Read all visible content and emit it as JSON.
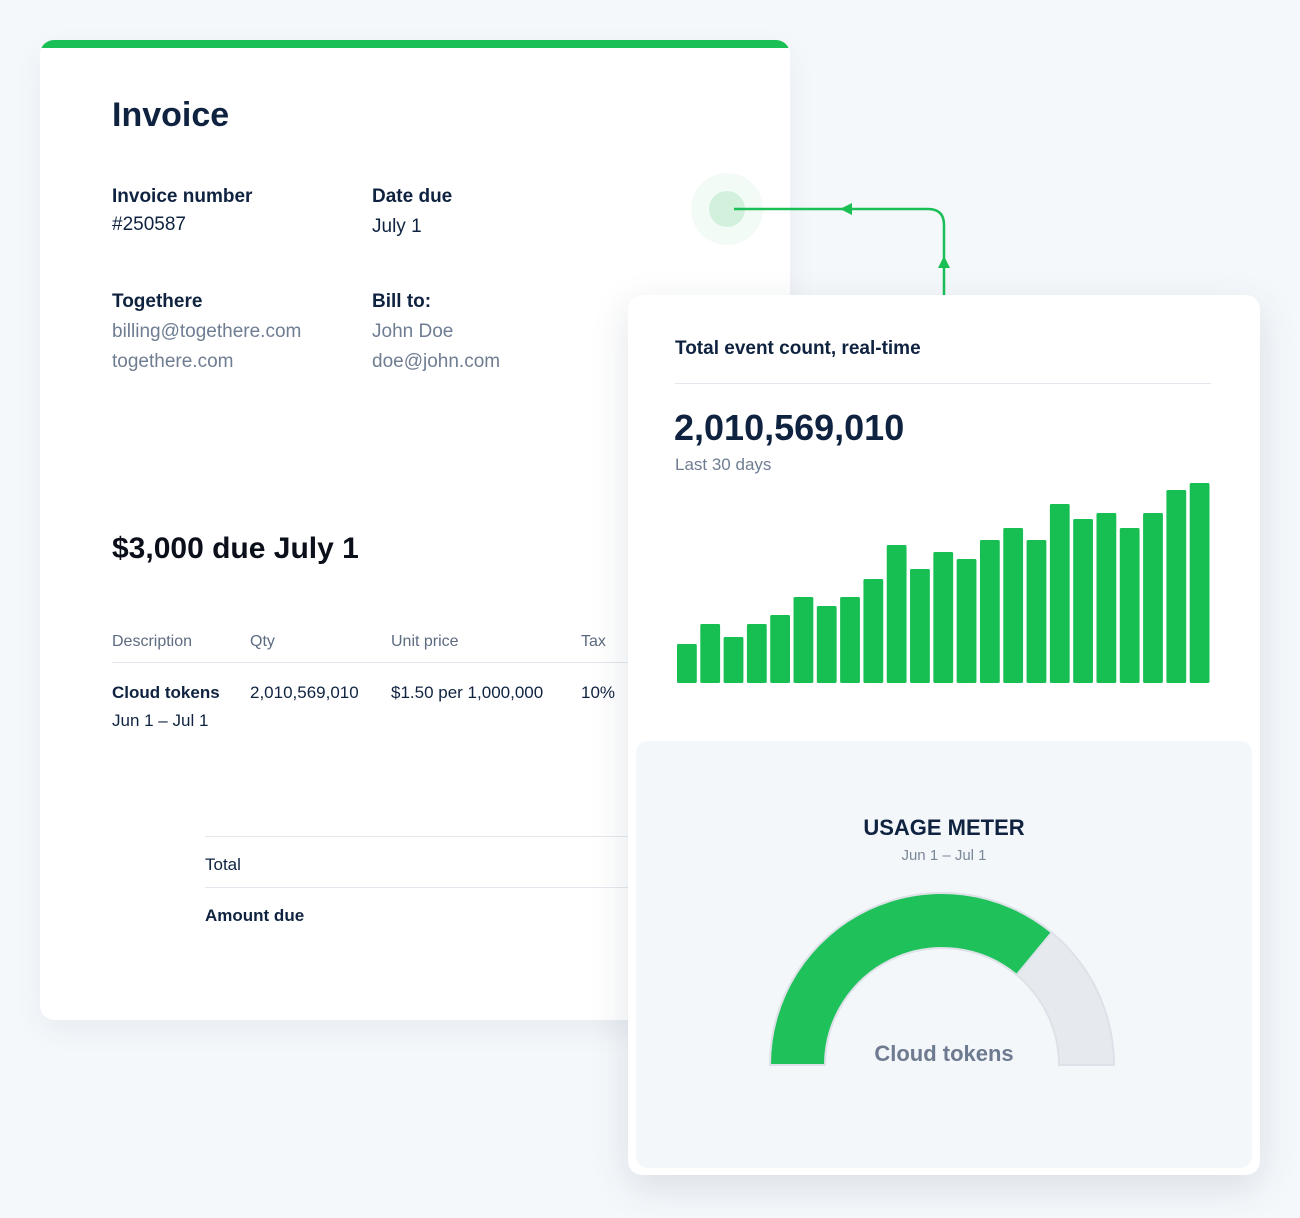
{
  "invoice": {
    "title": "Invoice",
    "invoice_number_label": "Invoice number",
    "invoice_number": "#250587",
    "date_due_label": "Date due",
    "date_due": "July 1",
    "from": {
      "name": "Togethere",
      "email": "billing@togethere.com",
      "site": "togethere.com"
    },
    "bill_to": {
      "label": "Bill to:",
      "name": "John Doe",
      "email": "doe@john.com"
    },
    "headline": "$3,000 due July 1",
    "columns": [
      "Description",
      "Qty",
      "Unit price",
      "Tax"
    ],
    "line_item": {
      "description": "Cloud tokens",
      "period": "Jun 1 – Jul 1",
      "qty": "2,010,569,010",
      "unit_price": "$1.50 per 1,000,000",
      "tax": "10%"
    },
    "total_label": "Total",
    "amount_due_label": "Amount due",
    "accent_color": "#1abf55"
  },
  "events": {
    "title": "Total event count, real-time",
    "count": "2,010,569,010",
    "period": "Last 30 days"
  },
  "chart_data": {
    "type": "bar",
    "values": [
      39,
      59,
      46,
      59,
      68,
      86,
      77,
      86,
      104,
      138,
      114,
      131,
      124,
      143,
      155,
      143,
      179,
      164,
      170,
      155,
      170,
      193,
      200
    ],
    "color": "#17bf53",
    "grid": false
  },
  "usage_meter": {
    "title": "USAGE METER",
    "period": "Jun 1 – Jul 1",
    "label": "Cloud tokens",
    "fill_fraction": 0.72,
    "fill_color": "#1ec15a",
    "track_color": "#e6eaee"
  }
}
